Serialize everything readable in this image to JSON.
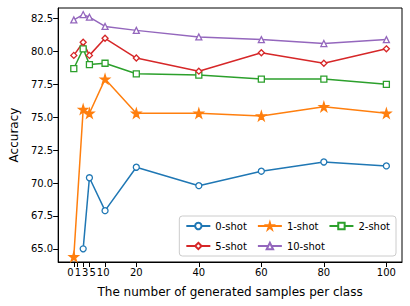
{
  "chart_data": {
    "type": "line",
    "x_label": "The number of generated samples per class",
    "y_label": "Accuracy",
    "x": [
      0,
      3,
      5,
      10,
      20,
      40,
      60,
      80,
      100
    ],
    "series": [
      {
        "name": "0-shot",
        "color": "#1f77b4",
        "marker": "circle",
        "values": [
          null,
          65.0,
          70.4,
          67.9,
          71.2,
          69.8,
          70.9,
          71.6,
          71.3
        ]
      },
      {
        "name": "1-shot",
        "color": "#ff7f0e",
        "marker": "star",
        "values": [
          64.4,
          75.6,
          75.3,
          77.9,
          75.3,
          75.3,
          75.1,
          75.8,
          75.3
        ]
      },
      {
        "name": "2-shot",
        "color": "#2ca02c",
        "marker": "square",
        "values": [
          78.7,
          80.2,
          79.0,
          79.1,
          78.3,
          78.2,
          77.9,
          77.9,
          77.5
        ]
      },
      {
        "name": "5-shot",
        "color": "#d62728",
        "marker": "diamond",
        "values": [
          79.7,
          80.7,
          79.7,
          81.0,
          79.5,
          78.5,
          79.9,
          79.1,
          80.2
        ]
      },
      {
        "name": "10-shot",
        "color": "#9467bd",
        "marker": "triangle",
        "values": [
          82.4,
          82.8,
          82.6,
          81.9,
          81.6,
          81.1,
          80.9,
          80.6,
          80.9
        ]
      }
    ],
    "xlim": [
      -5,
      105
    ],
    "xticks": [
      0,
      1,
      3,
      5,
      10,
      20,
      40,
      60,
      80,
      100
    ],
    "ylim": [
      64,
      83.3
    ],
    "yticks": [
      {
        "value": 65,
        "label": "65.0"
      },
      {
        "value": 67.5,
        "label": "67.5"
      },
      {
        "value": 70,
        "label": "70.0"
      },
      {
        "value": 72.5,
        "label": "72.5"
      },
      {
        "value": 75,
        "label": "75.0"
      },
      {
        "value": 77.5,
        "label": "77.5"
      },
      {
        "value": 80,
        "label": "80.0"
      },
      {
        "value": 82.5,
        "label": "82.5"
      }
    ],
    "grid": false,
    "legend": "lower right"
  }
}
